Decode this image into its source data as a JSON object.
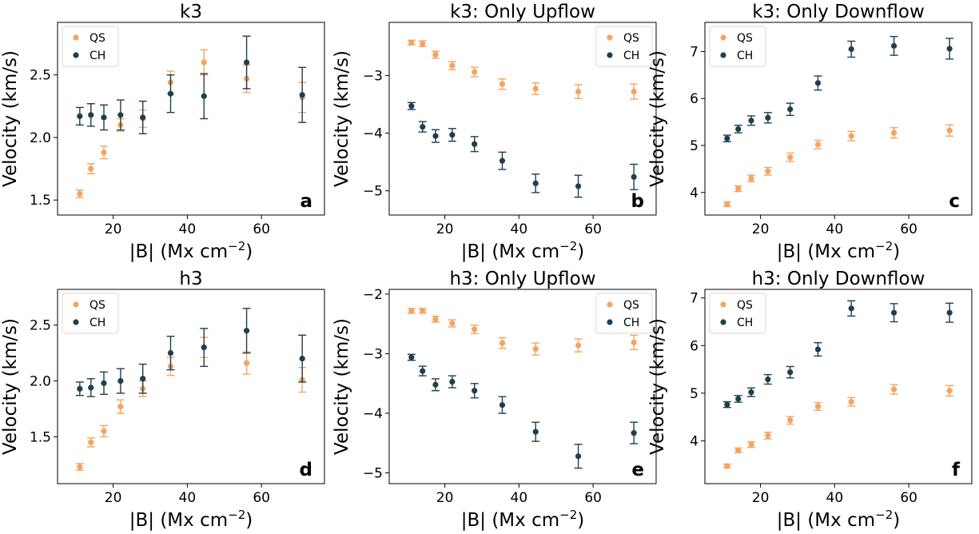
{
  "colors": {
    "QS": "#f4a460",
    "CH": "#1f3f4f"
  },
  "chart_data": [
    {
      "type": "scatter",
      "title": "k3",
      "letter": "a",
      "xlabel": "|B| (Mx cm",
      "xlabel_sup": "−2",
      "xlabel_end": ")",
      "ylabel": "Velocity (km/s)",
      "xlim": [
        5,
        77
      ],
      "ylim": [
        1.38,
        2.92
      ],
      "xticks": [
        20,
        40,
        60
      ],
      "xtick_labels": [
        "20",
        "40",
        "60"
      ],
      "yticks": [
        1.5,
        2.0,
        2.5
      ],
      "ytick_labels": [
        "1.5",
        "2.0",
        "2.5"
      ],
      "legend": "top-left",
      "series": [
        {
          "name": "QS",
          "x": [
            11,
            14,
            17.5,
            22,
            28,
            35.5,
            44.5,
            56,
            71
          ],
          "y": [
            1.55,
            1.75,
            1.88,
            2.1,
            2.15,
            2.44,
            2.6,
            2.47,
            2.32
          ],
          "err": [
            0.03,
            0.04,
            0.05,
            0.05,
            0.07,
            0.09,
            0.1,
            0.11,
            0.12
          ]
        },
        {
          "name": "CH",
          "x": [
            11,
            14,
            17.5,
            22,
            28,
            35.5,
            44.5,
            56,
            71
          ],
          "y": [
            2.17,
            2.18,
            2.16,
            2.18,
            2.16,
            2.35,
            2.33,
            2.6,
            2.34
          ],
          "err": [
            0.07,
            0.09,
            0.1,
            0.12,
            0.13,
            0.15,
            0.18,
            0.21,
            0.22
          ]
        }
      ]
    },
    {
      "type": "scatter",
      "title": "k3: Only Upflow",
      "letter": "b",
      "xlabel": "|B| (Mx cm",
      "xlabel_sup": "−2",
      "xlabel_end": ")",
      "ylabel": "Velocity (km/s)",
      "xlim": [
        5,
        77
      ],
      "ylim": [
        -5.42,
        -2.08
      ],
      "xticks": [
        20,
        40,
        60
      ],
      "xtick_labels": [
        "20",
        "40",
        "60"
      ],
      "yticks": [
        -5,
        -4,
        -3
      ],
      "ytick_labels": [
        "−5",
        "−4",
        "−3"
      ],
      "legend": "top-right",
      "series": [
        {
          "name": "QS",
          "x": [
            11,
            14,
            17.5,
            22,
            28,
            35.5,
            44.5,
            56,
            71
          ],
          "y": [
            -2.43,
            -2.45,
            -2.64,
            -2.83,
            -2.94,
            -3.15,
            -3.23,
            -3.28,
            -3.28
          ],
          "err": [
            0.04,
            0.05,
            0.06,
            0.07,
            0.08,
            0.09,
            0.1,
            0.12,
            0.13
          ]
        },
        {
          "name": "CH",
          "x": [
            11,
            14,
            17.5,
            22,
            28,
            35.5,
            44.5,
            56,
            71
          ],
          "y": [
            -3.53,
            -3.89,
            -4.05,
            -4.03,
            -4.19,
            -4.48,
            -4.87,
            -4.92,
            -4.76
          ],
          "err": [
            0.06,
            0.09,
            0.11,
            0.11,
            0.13,
            0.15,
            0.16,
            0.19,
            0.22
          ]
        }
      ]
    },
    {
      "type": "scatter",
      "title": "k3: Only Downflow",
      "letter": "c",
      "xlabel": "|B| (Mx cm",
      "xlabel_sup": "−2",
      "xlabel_end": ")",
      "ylabel": "Velocity (km/s)",
      "xlim": [
        5,
        77
      ],
      "ylim": [
        3.52,
        7.62
      ],
      "xticks": [
        20,
        40,
        60
      ],
      "xtick_labels": [
        "20",
        "40",
        "60"
      ],
      "yticks": [
        4,
        5,
        6,
        7
      ],
      "ytick_labels": [
        "4",
        "5",
        "6",
        "7"
      ],
      "legend": "top-left",
      "series": [
        {
          "name": "QS",
          "x": [
            11,
            14,
            17.5,
            22,
            28,
            35.5,
            44.5,
            56,
            71
          ],
          "y": [
            3.75,
            4.08,
            4.3,
            4.45,
            4.75,
            5.02,
            5.2,
            5.27,
            5.32
          ],
          "err": [
            0.05,
            0.06,
            0.07,
            0.08,
            0.09,
            0.09,
            0.1,
            0.11,
            0.12
          ]
        },
        {
          "name": "CH",
          "x": [
            11,
            14,
            17.5,
            22,
            28,
            35.5,
            44.5,
            56,
            71
          ],
          "y": [
            5.15,
            5.35,
            5.53,
            5.59,
            5.77,
            6.33,
            7.05,
            7.12,
            7.06
          ],
          "err": [
            0.07,
            0.08,
            0.1,
            0.11,
            0.13,
            0.15,
            0.17,
            0.2,
            0.22
          ]
        }
      ]
    },
    {
      "type": "scatter",
      "title": "h3",
      "letter": "d",
      "xlabel": "|B| (Mx cm",
      "xlabel_sup": "−2",
      "xlabel_end": ")",
      "ylabel": "Velocity (km/s)",
      "xlim": [
        5,
        77
      ],
      "ylim": [
        1.08,
        2.82
      ],
      "xticks": [
        20,
        40,
        60
      ],
      "xtick_labels": [
        "20",
        "40",
        "60"
      ],
      "yticks": [
        1.5,
        2.0,
        2.5
      ],
      "ytick_labels": [
        "1.5",
        "2.0",
        "2.5"
      ],
      "legend": "top-left",
      "series": [
        {
          "name": "QS",
          "x": [
            11,
            14,
            17.5,
            22,
            28,
            35.5,
            44.5,
            56,
            71
          ],
          "y": [
            1.23,
            1.45,
            1.55,
            1.77,
            1.93,
            2.13,
            2.3,
            2.16,
            2.01
          ],
          "err": [
            0.03,
            0.04,
            0.05,
            0.06,
            0.07,
            0.08,
            0.09,
            0.1,
            0.11
          ]
        },
        {
          "name": "CH",
          "x": [
            11,
            14,
            17.5,
            22,
            28,
            35.5,
            44.5,
            56,
            71
          ],
          "y": [
            1.93,
            1.94,
            1.98,
            2.0,
            2.02,
            2.25,
            2.3,
            2.45,
            2.2
          ],
          "err": [
            0.06,
            0.08,
            0.1,
            0.11,
            0.13,
            0.15,
            0.17,
            0.2,
            0.21
          ]
        }
      ]
    },
    {
      "type": "scatter",
      "title": "h3: Only Upflow",
      "letter": "e",
      "xlabel": "|B| (Mx cm",
      "xlabel_sup": "−2",
      "xlabel_end": ")",
      "ylabel": "Velocity (km/s)",
      "xlim": [
        5,
        77
      ],
      "ylim": [
        -5.18,
        -1.92
      ],
      "xticks": [
        20,
        40,
        60
      ],
      "xtick_labels": [
        "20",
        "40",
        "60"
      ],
      "yticks": [
        -5,
        -4,
        -3,
        -2
      ],
      "ytick_labels": [
        "−5",
        "−4",
        "−3",
        "−2"
      ],
      "legend": "top-right",
      "series": [
        {
          "name": "QS",
          "x": [
            11,
            14,
            17.5,
            22,
            28,
            35.5,
            44.5,
            56,
            71
          ],
          "y": [
            -2.28,
            -2.28,
            -2.42,
            -2.49,
            -2.59,
            -2.82,
            -2.92,
            -2.86,
            -2.81
          ],
          "err": [
            0.04,
            0.04,
            0.05,
            0.06,
            0.07,
            0.09,
            0.1,
            0.11,
            0.12
          ]
        },
        {
          "name": "CH",
          "x": [
            11,
            14,
            17.5,
            22,
            28,
            35.5,
            44.5,
            56,
            71
          ],
          "y": [
            -3.06,
            -3.29,
            -3.52,
            -3.47,
            -3.62,
            -3.86,
            -4.31,
            -4.72,
            -4.33
          ],
          "err": [
            0.05,
            0.08,
            0.1,
            0.1,
            0.12,
            0.14,
            0.16,
            0.2,
            0.18
          ]
        }
      ]
    },
    {
      "type": "scatter",
      "title": "h3: Only Downflow",
      "letter": "f",
      "xlabel": "|B| (Mx cm",
      "xlabel_sup": "−2",
      "xlabel_end": ")",
      "ylabel": "Velocity (km/s)",
      "xlim": [
        5,
        77
      ],
      "ylim": [
        3.1,
        7.18
      ],
      "xticks": [
        20,
        40,
        60
      ],
      "xtick_labels": [
        "20",
        "40",
        "60"
      ],
      "yticks": [
        4,
        5,
        6,
        7
      ],
      "ytick_labels": [
        "4",
        "5",
        "6",
        "7"
      ],
      "legend": "top-left",
      "series": [
        {
          "name": "QS",
          "x": [
            11,
            14,
            17.5,
            22,
            28,
            35.5,
            44.5,
            56,
            71
          ],
          "y": [
            3.47,
            3.8,
            3.92,
            4.11,
            4.43,
            4.72,
            4.82,
            5.08,
            5.05
          ],
          "err": [
            0.04,
            0.05,
            0.06,
            0.07,
            0.08,
            0.08,
            0.09,
            0.1,
            0.11
          ]
        },
        {
          "name": "CH",
          "x": [
            11,
            14,
            17.5,
            22,
            28,
            35.5,
            44.5,
            56,
            71
          ],
          "y": [
            4.76,
            4.88,
            5.02,
            5.29,
            5.44,
            5.92,
            6.78,
            6.69,
            6.69
          ],
          "err": [
            0.06,
            0.07,
            0.09,
            0.1,
            0.12,
            0.14,
            0.16,
            0.19,
            0.2
          ]
        }
      ]
    }
  ]
}
